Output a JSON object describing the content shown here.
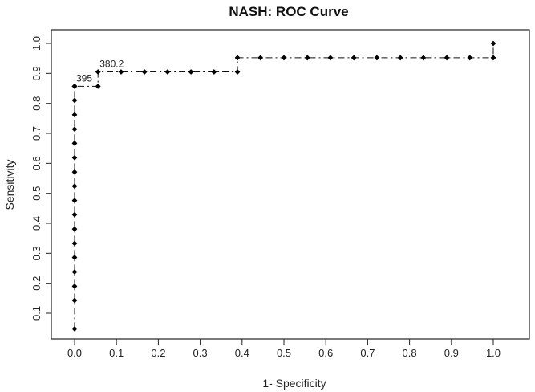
{
  "chart_data": {
    "type": "line",
    "title": "NASH: ROC Curve",
    "xlabel": "1- Specificity",
    "ylabel": "Sensitivity",
    "xlim": [
      0.0,
      1.0
    ],
    "ylim": [
      0.1,
      1.0
    ],
    "xticks": [
      "0.0",
      "0.1",
      "0.2",
      "0.3",
      "0.4",
      "0.5",
      "0.6",
      "0.7",
      "0.8",
      "0.9",
      "1.0"
    ],
    "yticks": [
      "0.1",
      "0.2",
      "0.3",
      "0.4",
      "0.5",
      "0.6",
      "0.7",
      "0.8",
      "0.9",
      "1.0"
    ],
    "grid": false,
    "series": [
      {
        "x": [
          0,
          0,
          0,
          0,
          0,
          0,
          0,
          0,
          0,
          0,
          0,
          0,
          0,
          0,
          0,
          0,
          0,
          0,
          0,
          0.056,
          0.056,
          0.111,
          0.167,
          0.222,
          0.278,
          0.333,
          0.389,
          0.389,
          0.444,
          0.5,
          0.556,
          0.611,
          0.667,
          0.722,
          0.778,
          0.833,
          0.889,
          0.944,
          1.0,
          1.0
        ],
        "y": [
          0.048,
          0.143,
          0.19,
          0.238,
          0.286,
          0.333,
          0.381,
          0.429,
          0.476,
          0.524,
          0.571,
          0.619,
          0.667,
          0.714,
          0.762,
          0.81,
          0.857,
          0.857,
          0.857,
          0.857,
          0.905,
          0.905,
          0.905,
          0.905,
          0.905,
          0.905,
          0.905,
          0.952,
          0.952,
          0.952,
          0.952,
          0.952,
          0.952,
          0.952,
          0.952,
          0.952,
          0.952,
          0.952,
          0.952,
          1.0
        ]
      }
    ],
    "annotations": [
      {
        "text": "395",
        "x": 0.0,
        "y": 0.857
      },
      {
        "text": "380.2",
        "x": 0.056,
        "y": 0.905
      }
    ]
  }
}
